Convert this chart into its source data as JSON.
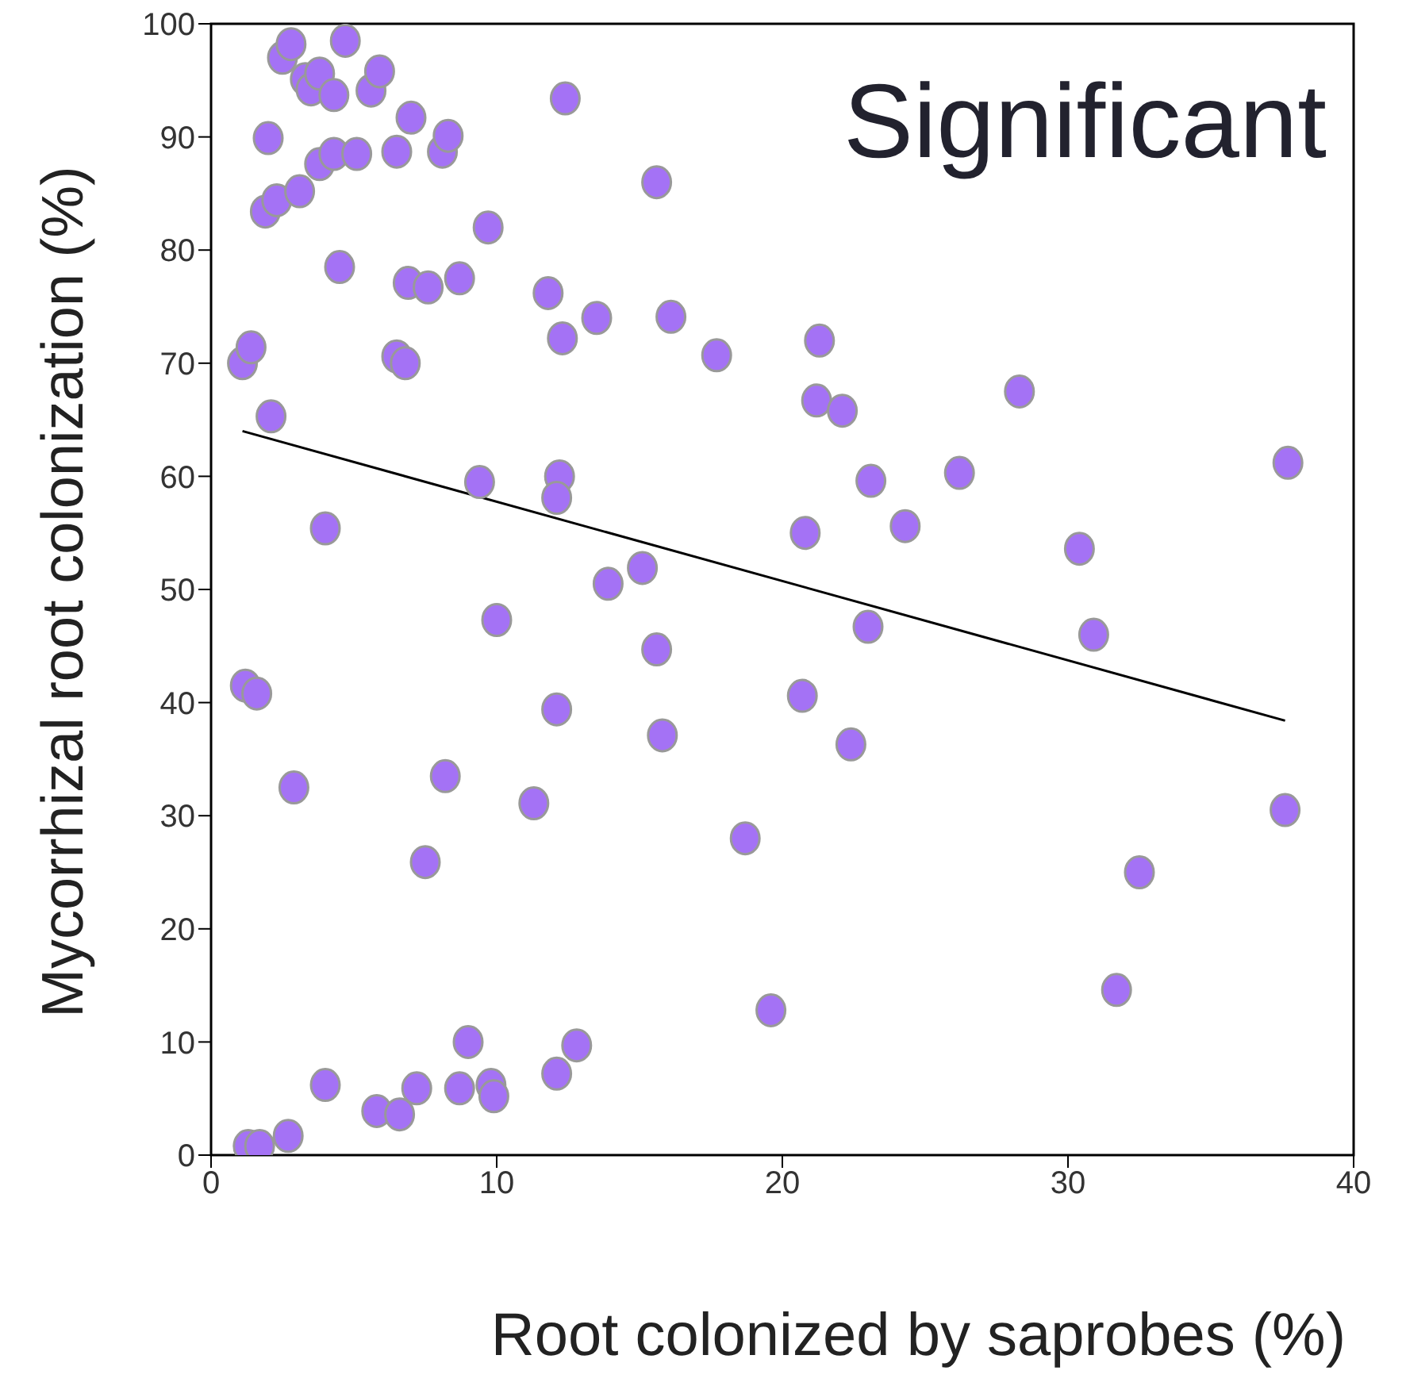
{
  "chart_data": {
    "type": "scatter",
    "title": "Significant",
    "xlabel": "Root colonized by saprobes (%)",
    "ylabel": "Mycorrhizal root colonization (%)",
    "xlim": [
      0,
      40
    ],
    "xticks": [
      0,
      10,
      20,
      30,
      40
    ],
    "ylim": [
      0,
      100
    ],
    "yticks": [
      0,
      10,
      20,
      30,
      40,
      50,
      60,
      70,
      80,
      90,
      100
    ],
    "legend": false,
    "series": [
      {
        "marker": "circle",
        "color": "#a472f5",
        "x": [
          1.1,
          1.4,
          2.1,
          2.0,
          1.9,
          2.3,
          2.5,
          2.8,
          3.1,
          3.3,
          3.5,
          3.8,
          3.8,
          4.3,
          4.3,
          4.5,
          4.7,
          5.1,
          5.6,
          5.9,
          6.5,
          7.0,
          6.5,
          6.8,
          6.9,
          7.6,
          8.1,
          8.3,
          8.7,
          9.7,
          4.0,
          1.2,
          1.6,
          2.9,
          8.2,
          7.5,
          9.4,
          12.2,
          12.1,
          10.0,
          12.1,
          11.3,
          1.3,
          1.7,
          2.7,
          4.0,
          5.8,
          6.6,
          7.2,
          8.7,
          9.0,
          9.8,
          9.9,
          12.1,
          12.8,
          12.4,
          15.6,
          11.8,
          12.3,
          13.5,
          16.1,
          17.7,
          21.3,
          21.2,
          22.1,
          28.3,
          23.1,
          26.2,
          37.7,
          20.8,
          24.3,
          30.4,
          13.9,
          15.1,
          23.0,
          30.9,
          15.6,
          20.7,
          15.8,
          22.4,
          18.7,
          19.6,
          31.7,
          32.5,
          37.6
        ],
        "values": [
          70.0,
          71.4,
          65.3,
          89.9,
          83.4,
          84.4,
          97.0,
          98.2,
          85.2,
          95.1,
          94.2,
          95.6,
          87.6,
          88.5,
          93.7,
          78.5,
          98.5,
          88.5,
          94.1,
          95.8,
          88.7,
          91.7,
          70.6,
          70.0,
          77.1,
          76.7,
          88.7,
          90.1,
          77.5,
          82.0,
          55.4,
          41.5,
          40.8,
          32.5,
          33.5,
          25.9,
          59.5,
          60.0,
          58.1,
          47.3,
          39.4,
          31.1,
          0.8,
          0.8,
          1.7,
          6.2,
          3.9,
          3.6,
          5.9,
          5.9,
          10.0,
          6.2,
          5.2,
          7.2,
          9.7,
          93.4,
          86.0,
          76.2,
          72.2,
          74.0,
          74.1,
          70.7,
          72.0,
          66.7,
          65.8,
          67.5,
          59.6,
          60.3,
          61.2,
          55.0,
          55.6,
          53.6,
          50.5,
          51.9,
          46.7,
          46.0,
          44.7,
          40.6,
          37.1,
          36.3,
          28.0,
          12.8,
          14.6,
          25.0,
          30.5
        ]
      },
      {
        "type": "line",
        "marker": "none",
        "color": "#000000",
        "x": [
          1.1,
          37.6
        ],
        "values": [
          64.0,
          38.4
        ]
      }
    ]
  }
}
